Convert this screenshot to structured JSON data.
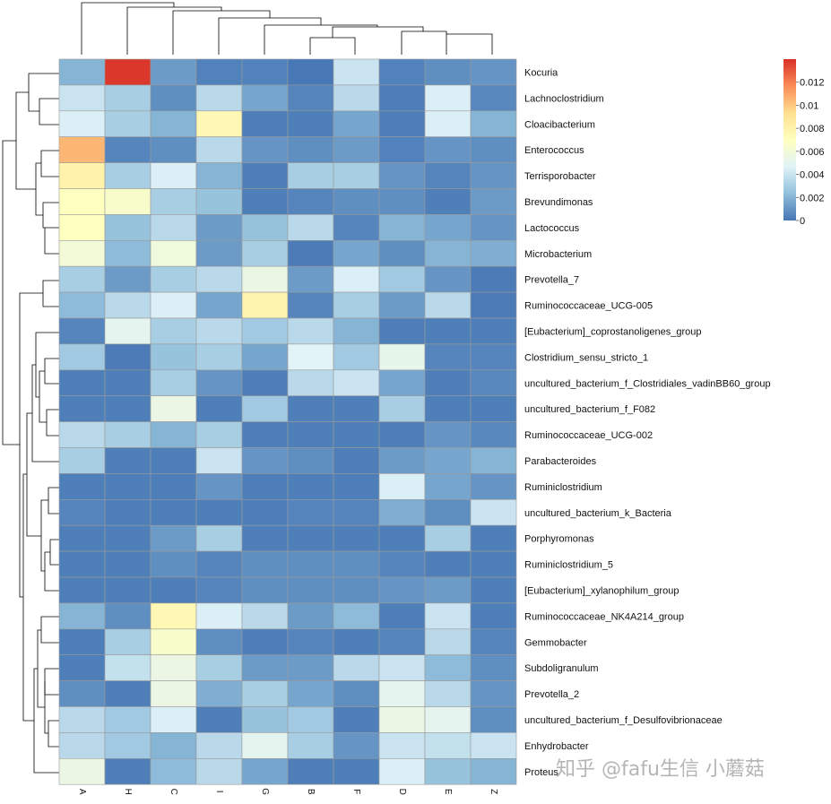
{
  "chart_data": {
    "type": "heatmap",
    "columns": [
      "A",
      "H",
      "C",
      "I",
      "G",
      "B",
      "F",
      "D",
      "E",
      "Z"
    ],
    "rows": [
      "Kocuria",
      "Lachnoclostridium",
      "Cloacibacterium",
      "Enterococcus",
      "Terrisporobacter",
      "Brevundimonas",
      "Lactococcus",
      "Microbacterium",
      "Prevotella_7",
      "Ruminococcaceae_UCG-005",
      "[Eubacterium]_coprostanoligenes_group",
      "Clostridium_sensu_stricto_1",
      "uncultured_bacterium_f_Clostridiales_vadinBB60_group",
      "uncultured_bacterium_f_F082",
      "Ruminococcaceae_UCG-002",
      "Parabacteroides",
      "Ruminiclostridium",
      "uncultured_bacterium_k_Bacteria",
      "Porphyromonas",
      "Ruminiclostridium_5",
      "[Eubacterium]_xylanophilum_group",
      "Ruminococcaceae_NK4A214_group",
      "Gemmobacter",
      "Subdoligranulum",
      "Prevotella_2",
      "uncultured_bacterium_f_Desulfovibrionaceae",
      "Enhydrobacter",
      "Proteus"
    ],
    "values": [
      [
        0.002,
        0.0138,
        0.0012,
        0.0004,
        0.0004,
        0.0001,
        0.004,
        0.0004,
        0.0008,
        0.001
      ],
      [
        0.004,
        0.003,
        0.0008,
        0.0035,
        0.0015,
        0.0005,
        0.0035,
        0.0003,
        0.0045,
        0.0006
      ],
      [
        0.0045,
        0.003,
        0.002,
        0.0075,
        0.0003,
        0.0003,
        0.0015,
        0.0003,
        0.0045,
        0.002
      ],
      [
        0.0105,
        0.0005,
        0.0008,
        0.0035,
        0.001,
        0.0008,
        0.0012,
        0.0004,
        0.001,
        0.0008
      ],
      [
        0.008,
        0.003,
        0.0045,
        0.002,
        0.0003,
        0.003,
        0.003,
        0.001,
        0.0005,
        0.001
      ],
      [
        0.007,
        0.0065,
        0.003,
        0.0025,
        0.0003,
        0.0005,
        0.0008,
        0.0008,
        0.0003,
        0.0012
      ],
      [
        0.007,
        0.0025,
        0.0035,
        0.0012,
        0.0025,
        0.0035,
        0.0005,
        0.002,
        0.0015,
        0.001
      ],
      [
        0.006,
        0.0022,
        0.0058,
        0.0012,
        0.003,
        0.0002,
        0.0015,
        0.0008,
        0.002,
        0.0018
      ],
      [
        0.003,
        0.0012,
        0.003,
        0.0035,
        0.0055,
        0.0012,
        0.0045,
        0.0028,
        0.001,
        0.0002
      ],
      [
        0.0022,
        0.0035,
        0.0045,
        0.0015,
        0.0078,
        0.0005,
        0.003,
        0.0012,
        0.0035,
        0.0002
      ],
      [
        0.0005,
        0.005,
        0.003,
        0.0035,
        0.0028,
        0.0035,
        0.002,
        0.0003,
        0.0003,
        0.0003
      ],
      [
        0.0028,
        0.0002,
        0.0025,
        0.003,
        0.0015,
        0.0048,
        0.0028,
        0.0052,
        0.0005,
        0.0005
      ],
      [
        0.0003,
        0.0003,
        0.003,
        0.001,
        0.0003,
        0.0035,
        0.004,
        0.0015,
        0.0003,
        0.0006
      ],
      [
        0.0003,
        0.0003,
        0.0055,
        0.0003,
        0.0028,
        0.0003,
        0.0003,
        0.003,
        0.0003,
        0.0003
      ],
      [
        0.0035,
        0.003,
        0.002,
        0.003,
        0.0003,
        0.0003,
        0.0003,
        0.0003,
        0.001,
        0.0006
      ],
      [
        0.003,
        0.0003,
        0.0003,
        0.004,
        0.001,
        0.0008,
        0.0003,
        0.0012,
        0.0015,
        0.002
      ],
      [
        0.0003,
        0.0003,
        0.0003,
        0.001,
        0.0003,
        0.0003,
        0.0003,
        0.0045,
        0.0015,
        0.001
      ],
      [
        0.0005,
        0.0003,
        0.0003,
        0.0003,
        0.0003,
        0.0005,
        0.0005,
        0.0018,
        0.0008,
        0.004
      ],
      [
        0.0003,
        0.0003,
        0.0012,
        0.003,
        0.0003,
        0.0003,
        0.0003,
        0.0003,
        0.003,
        0.0003
      ],
      [
        0.0003,
        0.0003,
        0.0008,
        0.0005,
        0.0008,
        0.0008,
        0.0008,
        0.0005,
        0.0003,
        0.0003
      ],
      [
        0.0003,
        0.0003,
        0.0003,
        0.0005,
        0.0008,
        0.0008,
        0.0008,
        0.001,
        0.0012,
        0.0003
      ],
      [
        0.002,
        0.0008,
        0.0075,
        0.0045,
        0.0035,
        0.0012,
        0.0022,
        0.0003,
        0.004,
        0.0003
      ],
      [
        0.0003,
        0.003,
        0.0065,
        0.0008,
        0.0003,
        0.0005,
        0.0003,
        0.0005,
        0.0035,
        0.0005
      ],
      [
        0.0003,
        0.0038,
        0.0055,
        0.003,
        0.0012,
        0.0012,
        0.0035,
        0.004,
        0.0022,
        0.0008
      ],
      [
        0.0008,
        0.0003,
        0.0055,
        0.0018,
        0.003,
        0.0015,
        0.0008,
        0.005,
        0.0035,
        0.001
      ],
      [
        0.0035,
        0.0028,
        0.0045,
        0.0003,
        0.0025,
        0.0028,
        0.0003,
        0.0055,
        0.005,
        0.0008
      ],
      [
        0.0035,
        0.0028,
        0.002,
        0.0035,
        0.005,
        0.003,
        0.001,
        0.004,
        0.0038,
        0.004
      ],
      [
        0.0055,
        0.0003,
        0.0022,
        0.0035,
        0.0015,
        0.0003,
        0.0003,
        0.0045,
        0.0025,
        0.002
      ]
    ],
    "color_scale": {
      "min": 0,
      "max": 0.014,
      "stops": [
        "#4575b4",
        "#91bfdb",
        "#e0f3f8",
        "#ffffbf",
        "#fee090",
        "#fc8d59",
        "#d73027"
      ]
    },
    "legend": {
      "position": "top-right",
      "ticks": [
        "0",
        "0.002",
        "0.004",
        "0.006",
        "0.008",
        "0.01",
        "0.012"
      ],
      "tick_values": [
        0,
        0.002,
        0.004,
        0.006,
        0.008,
        0.01,
        0.012
      ]
    },
    "row_dendrogram": "left",
    "col_dendrogram": "top"
  },
  "watermark": "知乎 @fafu生信 小蘑菇"
}
